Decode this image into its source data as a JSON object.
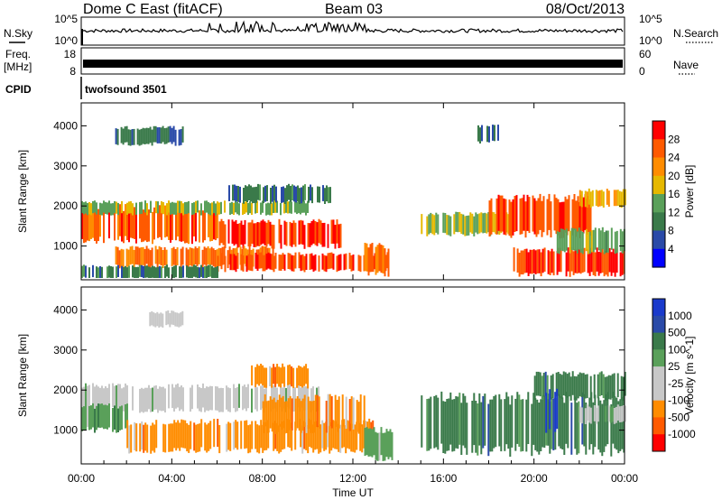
{
  "header": {
    "station": "Dome C East (fitACF)",
    "beam": "Beam 03",
    "date": "08/Oct/2013"
  },
  "noise_panel": {
    "left_label": "N.Sky",
    "left_ticks": [
      "10^5",
      "10^0"
    ],
    "right_label": "N.Search",
    "right_ticks": [
      "10^5",
      "10^0"
    ]
  },
  "freq_panel": {
    "left_label_line1": "Freq.",
    "left_label_line2": "[MHz]",
    "left_ticks": [
      "18",
      "8"
    ],
    "right_label": "Nave",
    "right_ticks": [
      "60",
      "0"
    ]
  },
  "cpid_panel": {
    "label": "CPID",
    "program": "twofsound 3501"
  },
  "colors": {
    "power": [
      "#0000ff",
      "#2a4aa8",
      "#3a7a4a",
      "#5aa05a",
      "#e6b800",
      "#ff8c00",
      "#ff5a00",
      "#ff0000"
    ],
    "velocity": [
      "#ff0000",
      "#ff5a00",
      "#ff8c00",
      "#c8c8c8",
      "#c8c8c8",
      "#5aa05a",
      "#3a7a4a",
      "#2a4aa8",
      "#1a3acc"
    ]
  },
  "chart_data": [
    {
      "type": "heatmap",
      "panel": "power",
      "ylabel": "Slant Range [km]",
      "yticks": [
        1000,
        2000,
        3000,
        4000
      ],
      "ylim": [
        180,
        4550
      ],
      "xlim": [
        0,
        24
      ],
      "colorbar_label": "Power [dB]",
      "colorbar_ticks": [
        4,
        8,
        12,
        16,
        20,
        24,
        28
      ],
      "colorbar_range": [
        0,
        32
      ],
      "regions": [
        {
          "t0": 0.0,
          "t1": 6.0,
          "r0": 1150,
          "r1": 1950,
          "level": 26
        },
        {
          "t0": 6.0,
          "t1": 11.5,
          "r0": 1000,
          "r1": 1600,
          "level": 28
        },
        {
          "t0": 0.0,
          "t1": 10.0,
          "r0": 1800,
          "r1": 2100,
          "level": 15
        },
        {
          "t0": 1.5,
          "t1": 8.5,
          "r0": 500,
          "r1": 950,
          "level": 25
        },
        {
          "t0": 6.0,
          "t1": 13.5,
          "r0": 400,
          "r1": 800,
          "level": 27
        },
        {
          "t0": 12.5,
          "t1": 13.6,
          "r0": 300,
          "r1": 1000,
          "level": 24
        },
        {
          "t0": 6.5,
          "t1": 11.0,
          "r0": 2100,
          "r1": 2500,
          "level": 10
        },
        {
          "t0": 1.5,
          "t1": 4.5,
          "r0": 3550,
          "r1": 3950,
          "level": 9
        },
        {
          "t0": 0.0,
          "t1": 6.0,
          "r0": 200,
          "r1": 500,
          "level": 10
        },
        {
          "t0": 15.0,
          "t1": 19.0,
          "r0": 1300,
          "r1": 1800,
          "level": 16
        },
        {
          "t0": 18.0,
          "t1": 22.5,
          "r0": 1300,
          "r1": 2200,
          "level": 27
        },
        {
          "t0": 19.0,
          "t1": 24.0,
          "r0": 300,
          "r1": 900,
          "level": 28
        },
        {
          "t0": 21.0,
          "t1": 24.0,
          "r0": 850,
          "r1": 1400,
          "level": 14
        },
        {
          "t0": 22.0,
          "t1": 24.0,
          "r0": 2000,
          "r1": 2400,
          "level": 20
        },
        {
          "t0": 17.5,
          "t1": 18.5,
          "r0": 3600,
          "r1": 4000,
          "level": 9
        }
      ]
    },
    {
      "type": "heatmap",
      "panel": "velocity",
      "ylabel": "Slant Range [km]",
      "yticks": [
        1000,
        2000,
        3000,
        4000
      ],
      "ylim": [
        180,
        4550
      ],
      "xlim": [
        0,
        24
      ],
      "xticks": [
        "00:00",
        "04:00",
        "08:00",
        "12:00",
        "16:00",
        "20:00",
        "00:00"
      ],
      "xlabel": "Time UT",
      "colorbar_label": "Velocity [m s^-1]",
      "colorbar_ticks": [
        "1000",
        "500",
        "100",
        "25",
        "-25",
        "-100",
        "-500",
        "-1000"
      ],
      "regions": [
        {
          "t0": 0.0,
          "t1": 10.5,
          "r0": 1500,
          "r1": 2100,
          "level": 4
        },
        {
          "t0": 0.0,
          "t1": 2.0,
          "r0": 1000,
          "r1": 1600,
          "level": 5
        },
        {
          "t0": 2.0,
          "t1": 13.0,
          "r0": 500,
          "r1": 1200,
          "level": 2
        },
        {
          "t0": 8.0,
          "t1": 12.5,
          "r0": 1000,
          "r1": 1800,
          "level": 2
        },
        {
          "t0": 12.5,
          "t1": 13.7,
          "r0": 300,
          "r1": 1000,
          "level": 5
        },
        {
          "t0": 7.5,
          "t1": 10.0,
          "r0": 2100,
          "r1": 2600,
          "level": 2
        },
        {
          "t0": 3.0,
          "t1": 4.5,
          "r0": 3600,
          "r1": 3950,
          "level": 4
        },
        {
          "t0": 15.0,
          "t1": 24.0,
          "r0": 500,
          "r1": 1800,
          "level": 6
        },
        {
          "t0": 20.0,
          "t1": 24.0,
          "r0": 1800,
          "r1": 2400,
          "level": 6
        },
        {
          "t0": 20.5,
          "t1": 21.0,
          "r0": 1000,
          "r1": 2000,
          "level": 8
        },
        {
          "t0": 22.0,
          "t1": 24.0,
          "r0": 1200,
          "r1": 1600,
          "level": 4
        }
      ]
    }
  ]
}
